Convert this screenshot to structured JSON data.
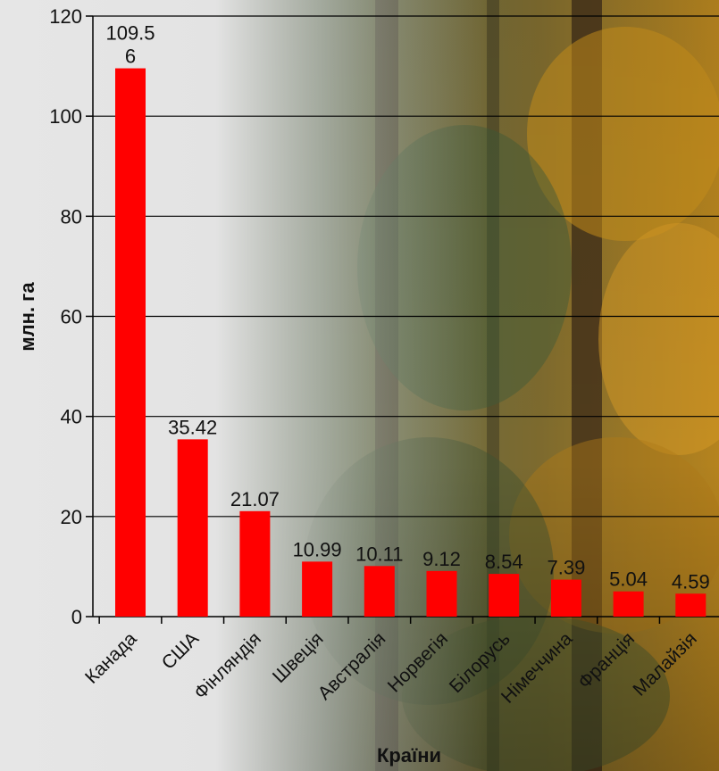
{
  "chart_data": {
    "type": "bar",
    "title": "",
    "xlabel": "Країни",
    "ylabel": "млн. га",
    "ylim": [
      0,
      120
    ],
    "yticks": [
      0,
      20,
      40,
      60,
      80,
      100,
      120
    ],
    "grid": true,
    "categories": [
      "Канада",
      "США",
      "Фінляндія",
      "Швеція",
      "Австралія",
      "Норвегія",
      "Білорусь",
      "Німеччина",
      "Франція",
      "Малайзія"
    ],
    "values": [
      109.56,
      35.42,
      21.07,
      10.99,
      10.11,
      9.12,
      8.54,
      7.39,
      5.04,
      4.59
    ],
    "data_labels": [
      "109.5\n6",
      "35.42",
      "21.07",
      "10.99",
      "10.11",
      "9.12",
      "8.54",
      "7.39",
      "5.04",
      "4.59"
    ],
    "bar_color": "#ff0000",
    "background": "forest photo, grey fade on left"
  }
}
